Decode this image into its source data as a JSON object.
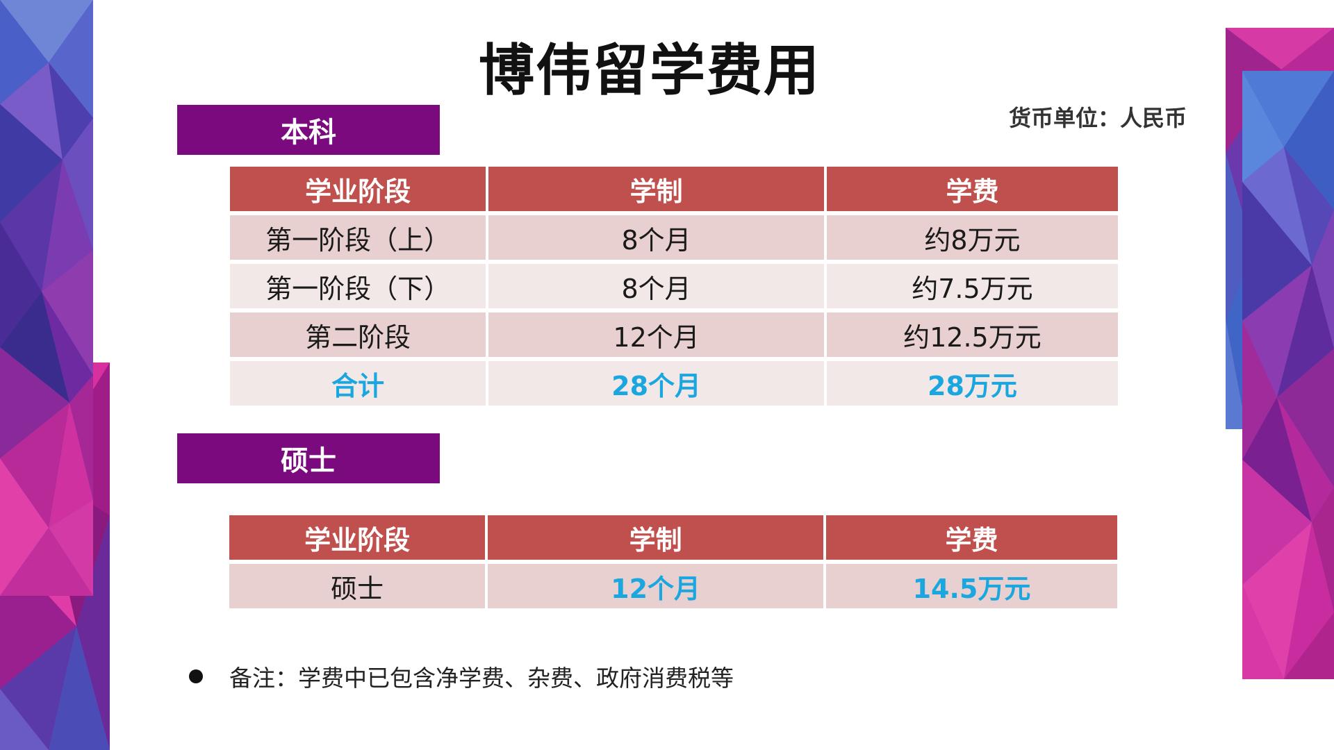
{
  "title": "博伟留学费用",
  "currency_note": "货币单位：人民币",
  "colors": {
    "section_label_bg": "#7b0a7e",
    "table_header_bg": "#c0504d",
    "row_odd_bg": "#e8d0d0",
    "row_even_bg": "#f3e8e8",
    "highlight_text": "#1aa7e0"
  },
  "bachelor": {
    "label": "本科",
    "headers": [
      "学业阶段",
      "学制",
      "学费"
    ],
    "rows": [
      [
        "第一阶段（上）",
        "8个月",
        "约8万元"
      ],
      [
        "第一阶段（下）",
        "8个月",
        "约7.5万元"
      ],
      [
        "第二阶段",
        "12个月",
        "约12.5万元"
      ],
      [
        "合计",
        "28个月",
        "28万元"
      ]
    ]
  },
  "master": {
    "label": "硕士",
    "headers": [
      "学业阶段",
      "学制",
      "学费"
    ],
    "rows": [
      [
        "硕士",
        "12个月",
        "14.5万元"
      ]
    ]
  },
  "note": "备注：学费中已包含净学费、杂费、政府消费税等"
}
